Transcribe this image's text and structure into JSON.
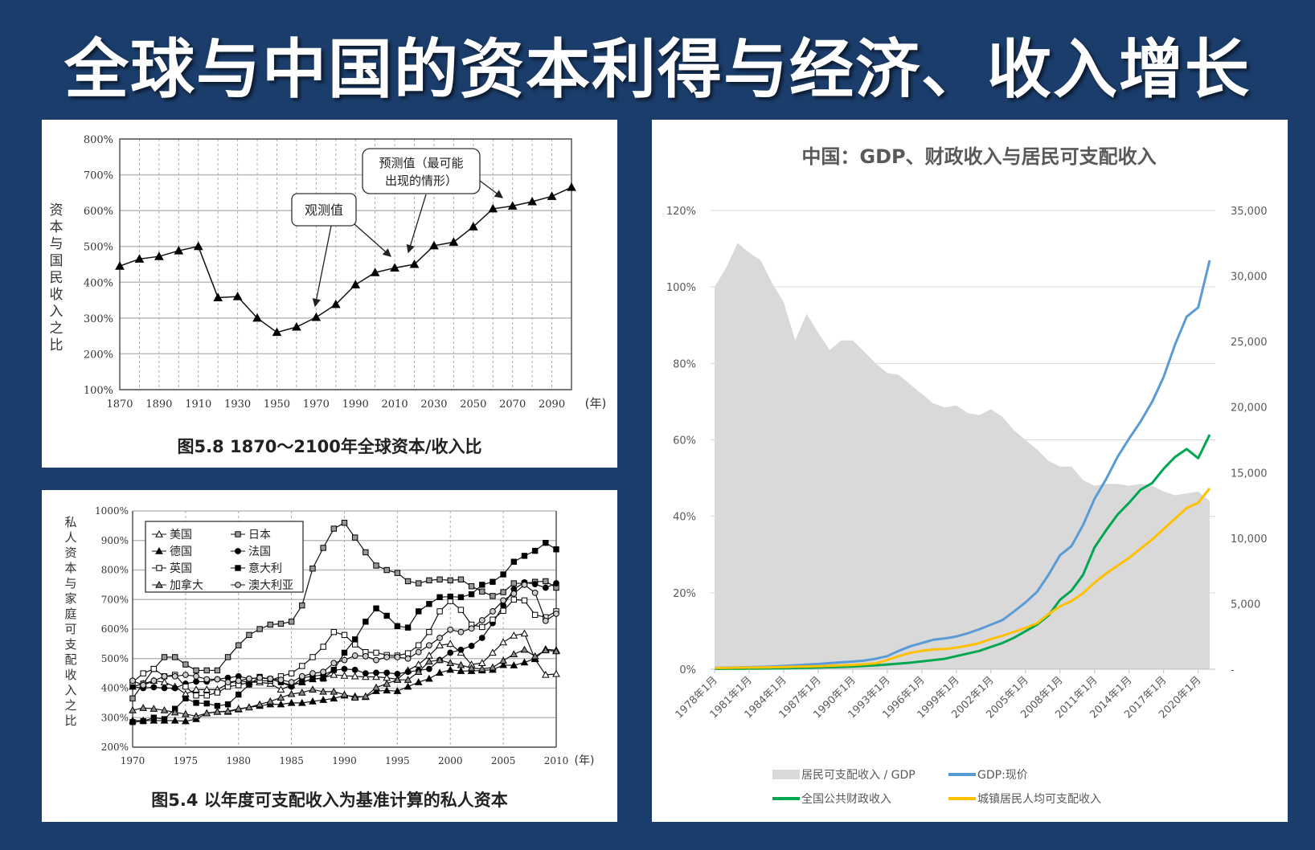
{
  "page_title": "全球与中国的资本利得与经济、收入增长",
  "chart_data": [
    {
      "type": "line",
      "id": "global",
      "caption": "图5.8 1870～2100年全球资本/收入比",
      "ylabel": "资本与国民收入之比",
      "xlabel_suffix": "(年)",
      "ylim": [
        100,
        800
      ],
      "yticks": [
        "100%",
        "200%",
        "300%",
        "400%",
        "500%",
        "600%",
        "700%",
        "800%"
      ],
      "xlim": [
        1870,
        2100
      ],
      "xticks": [
        "1870",
        "1890",
        "1910",
        "1930",
        "1950",
        "1970",
        "1990",
        "2010",
        "2030",
        "2050",
        "2070",
        "2090"
      ],
      "x": [
        1870,
        1880,
        1890,
        1900,
        1910,
        1920,
        1930,
        1940,
        1950,
        1960,
        1970,
        1980,
        1990,
        2000,
        2010,
        2020,
        2030,
        2040,
        2050,
        2060,
        2070,
        2080,
        2090,
        2100
      ],
      "values": [
        445,
        465,
        472,
        488,
        500,
        357,
        360,
        300,
        260,
        275,
        302,
        338,
        393,
        427,
        440,
        450,
        502,
        512,
        555,
        605,
        613,
        625,
        640,
        665
      ],
      "annotations": [
        {
          "text": "观测值"
        },
        {
          "text_line1": "预测值（最可能",
          "text_line2": "出现的情形）"
        }
      ],
      "grid": true
    },
    {
      "type": "line",
      "id": "private",
      "caption": "图5.4 以年度可支配收入为基准计算的私人资本",
      "ylabel": "私人资本与家庭可支配收入之比",
      "xlabel_suffix": "(年)",
      "ylim": [
        200,
        1000
      ],
      "yticks": [
        "200%",
        "300%",
        "400%",
        "500%",
        "600%",
        "700%",
        "800%",
        "900%",
        "1000%"
      ],
      "xlim": [
        1970,
        2010
      ],
      "xticks": [
        "1970",
        "1975",
        "1980",
        "1985",
        "1990",
        "1995",
        "2000",
        "2005",
        "2010"
      ],
      "x_start": 1970,
      "legend_position": "top-left",
      "series": [
        {
          "name": "美国",
          "marker": "triangle",
          "fill": "#ffffff",
          "values": [
            405,
            415,
            425,
            420,
            405,
            380,
            395,
            395,
            395,
            415,
            425,
            420,
            420,
            415,
            395,
            410,
            420,
            430,
            435,
            445,
            442,
            440,
            438,
            438,
            435,
            430,
            460,
            480,
            510,
            545,
            550,
            520,
            480,
            485,
            520,
            555,
            578,
            585,
            498,
            445,
            448
          ]
        },
        {
          "name": "日本",
          "marker": "square",
          "fill": "#999999",
          "values": [
            365,
            415,
            465,
            505,
            505,
            480,
            460,
            460,
            460,
            505,
            545,
            580,
            600,
            615,
            618,
            625,
            680,
            805,
            875,
            940,
            960,
            910,
            860,
            815,
            800,
            790,
            762,
            755,
            765,
            768,
            765,
            768,
            745,
            727,
            712,
            725,
            755,
            755,
            760,
            762,
            740
          ]
        },
        {
          "name": "德国",
          "marker": "triangle",
          "fill": "#000000",
          "values": [
            290,
            290,
            290,
            290,
            290,
            288,
            295,
            315,
            320,
            320,
            328,
            335,
            340,
            345,
            345,
            350,
            350,
            355,
            360,
            365,
            375,
            372,
            370,
            390,
            392,
            390,
            405,
            420,
            432,
            452,
            462,
            458,
            458,
            460,
            462,
            478,
            477,
            487,
            500,
            532,
            528
          ]
        },
        {
          "name": "法国",
          "marker": "circle",
          "fill": "#000000",
          "values": [
            405,
            400,
            403,
            400,
            400,
            415,
            422,
            422,
            430,
            435,
            440,
            432,
            435,
            432,
            420,
            405,
            435,
            440,
            445,
            460,
            465,
            462,
            450,
            452,
            452,
            448,
            455,
            460,
            465,
            495,
            520,
            530,
            543,
            570,
            620,
            680,
            735,
            758,
            752,
            740,
            755
          ]
        },
        {
          "name": "英国",
          "marker": "square",
          "fill": "#ffffff",
          "values": [
            420,
            450,
            465,
            440,
            445,
            405,
            375,
            375,
            385,
            405,
            410,
            420,
            425,
            425,
            440,
            450,
            475,
            505,
            540,
            590,
            580,
            548,
            522,
            520,
            512,
            510,
            518,
            545,
            590,
            660,
            695,
            665,
            615,
            607,
            632,
            662,
            700,
            697,
            648,
            640,
            660
          ]
        },
        {
          "name": "意大利",
          "marker": "square",
          "fill": "#000000",
          "values": [
            285,
            288,
            300,
            295,
            330,
            365,
            350,
            348,
            340,
            345,
            378,
            412,
            438,
            430,
            420,
            410,
            420,
            432,
            432,
            462,
            520,
            565,
            625,
            670,
            645,
            610,
            605,
            660,
            685,
            708,
            710,
            708,
            718,
            750,
            760,
            785,
            828,
            848,
            865,
            892,
            870
          ]
        },
        {
          "name": "加拿大",
          "marker": "triangle",
          "fill": "#888888",
          "values": [
            325,
            333,
            330,
            325,
            318,
            312,
            305,
            315,
            320,
            322,
            330,
            335,
            345,
            355,
            368,
            380,
            385,
            395,
            388,
            388,
            378,
            368,
            372,
            402,
            415,
            428,
            428,
            455,
            490,
            495,
            485,
            478,
            468,
            465,
            470,
            493,
            515,
            530,
            508,
            528,
            525
          ]
        },
        {
          "name": "澳大利亚",
          "marker": "circle",
          "fill": "#cccccc",
          "values": [
            425,
            410,
            425,
            440,
            440,
            445,
            440,
            430,
            430,
            420,
            425,
            432,
            435,
            432,
            428,
            420,
            440,
            450,
            455,
            485,
            495,
            510,
            508,
            495,
            505,
            505,
            500,
            522,
            545,
            570,
            598,
            590,
            602,
            630,
            660,
            697,
            720,
            750,
            723,
            628,
            652
          ]
        }
      ],
      "grid": true
    },
    {
      "type": "area+line",
      "id": "china",
      "title": "中国：GDP、财政收入与居民可支配收入",
      "x_start": 1978,
      "xticks": [
        "1978年1月",
        "1981年1月",
        "1984年1月",
        "1987年1月",
        "1990年1月",
        "1993年1月",
        "1996年1月",
        "1999年1月",
        "2002年1月",
        "2005年1月",
        "2008年1月",
        "2011年1月",
        "2014年1月",
        "2017年1月",
        "2020年1月"
      ],
      "ylim_left": [
        0,
        120
      ],
      "yticks_left": [
        "0%",
        "20%",
        "40%",
        "60%",
        "80%",
        "100%",
        "120%"
      ],
      "ylim_right": [
        0,
        35000
      ],
      "yticks_right": [
        "-",
        "5,000",
        "10,000",
        "15,000",
        "20,000",
        "25,000",
        "30,000",
        "35,000"
      ],
      "legend_position": "bottom",
      "area": {
        "name": "居民可支配收入 / GDP",
        "color": "#d9d9d9",
        "axis": "left",
        "values": [
          100,
          105,
          111.5,
          109,
          107,
          101,
          96,
          86,
          93,
          88,
          83.5,
          86,
          86,
          83,
          80,
          77.5,
          77,
          74.5,
          72,
          69.5,
          68.5,
          69,
          67,
          66.5,
          68,
          66,
          62.5,
          60,
          57.5,
          54.5,
          53,
          53,
          49.5,
          48,
          48.5,
          48.5,
          48,
          48.5,
          48,
          46.5,
          45.5,
          46,
          46.5,
          44
        ]
      },
      "series": [
        {
          "name": "GDP:现价",
          "color": "#5b9bd5",
          "axis": "right",
          "values": [
            100,
            120,
            140,
            160,
            180,
            210,
            250,
            300,
            350,
            400,
            470,
            530,
            580,
            660,
            800,
            1000,
            1400,
            1750,
            2000,
            2250,
            2350,
            2500,
            2750,
            3050,
            3400,
            3750,
            4400,
            5100,
            5900,
            7200,
            8700,
            9400,
            11000,
            13000,
            14500,
            16200,
            17600,
            18900,
            20400,
            22300,
            24800,
            26900,
            27600,
            31200
          ]
        },
        {
          "name": "全国公共财政收入",
          "color": "#00a650",
          "axis": "right",
          "values": [
            30,
            35,
            40,
            45,
            50,
            60,
            70,
            90,
            110,
            130,
            150,
            180,
            210,
            250,
            300,
            360,
            430,
            500,
            600,
            700,
            800,
            1000,
            1200,
            1400,
            1700,
            2000,
            2400,
            2900,
            3400,
            4100,
            5300,
            6000,
            7200,
            9300,
            10600,
            11800,
            12700,
            13700,
            14200,
            15300,
            16200,
            16800,
            16100,
            17900
          ]
        },
        {
          "name": "城镇居民人均可支配收入",
          "color": "#ffc000",
          "axis": "right",
          "values": [
            100,
            110,
            120,
            130,
            140,
            150,
            170,
            190,
            210,
            230,
            260,
            300,
            330,
            380,
            450,
            700,
            1000,
            1250,
            1400,
            1500,
            1550,
            1650,
            1800,
            2000,
            2300,
            2550,
            2850,
            3150,
            3500,
            4200,
            4800,
            5200,
            5800,
            6600,
            7300,
            7900,
            8500,
            9200,
            9900,
            10700,
            11500,
            12300,
            12700,
            13800
          ]
        }
      ]
    }
  ]
}
